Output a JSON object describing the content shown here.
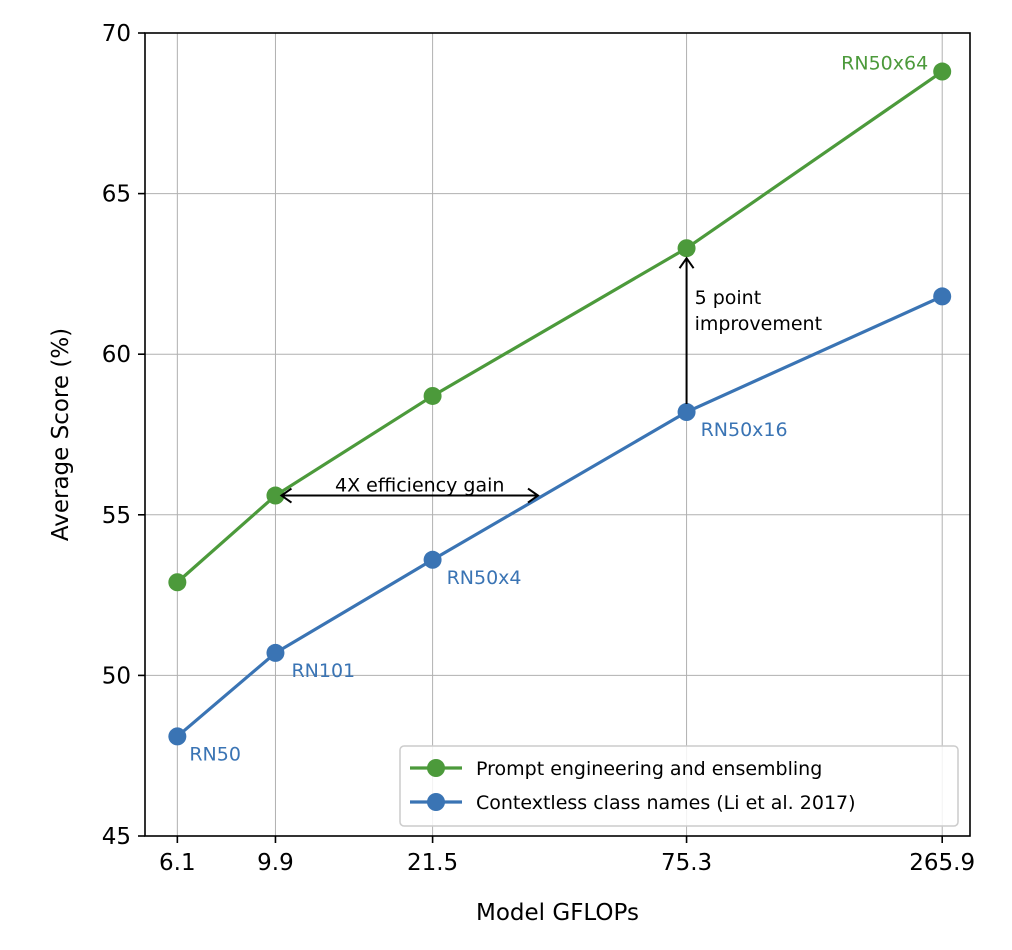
{
  "chart_data": {
    "type": "line",
    "xlabel": "Model GFLOPs",
    "ylabel": "Average Score (%)",
    "x_tick_labels": [
      "6.1",
      "9.9",
      "21.5",
      "75.3",
      "265.9"
    ],
    "x": [
      6.1,
      9.9,
      21.5,
      75.3,
      265.9
    ],
    "x_scale": "log",
    "ylim": [
      45,
      70
    ],
    "y_ticks": [
      45,
      50,
      55,
      60,
      65,
      70
    ],
    "grid": true,
    "legend_position": "lower-right",
    "series": [
      {
        "name": "Prompt engineering and ensembling",
        "color": "#4c9a3b",
        "values": [
          52.9,
          55.6,
          58.7,
          63.3,
          68.8
        ]
      },
      {
        "name": "Contextless class names (Li et al. 2017)",
        "color": "#3a74b4",
        "values": [
          48.1,
          50.7,
          53.6,
          58.2,
          61.8
        ]
      }
    ],
    "point_labels": [
      {
        "text": "RN50",
        "x": 6.1,
        "series": 1
      },
      {
        "text": "RN101",
        "x": 9.9,
        "series": 1
      },
      {
        "text": "RN50x4",
        "x": 21.5,
        "series": 1
      },
      {
        "text": "RN50x16",
        "x": 75.3,
        "series": 1
      },
      {
        "text": "RN50x64",
        "x": 265.9,
        "series": 0
      }
    ],
    "annotations": [
      {
        "text": "4X efficiency gain",
        "type": "horizontal-arrow"
      },
      {
        "text": "5 point\nimprovement",
        "type": "vertical-arrow"
      }
    ]
  }
}
